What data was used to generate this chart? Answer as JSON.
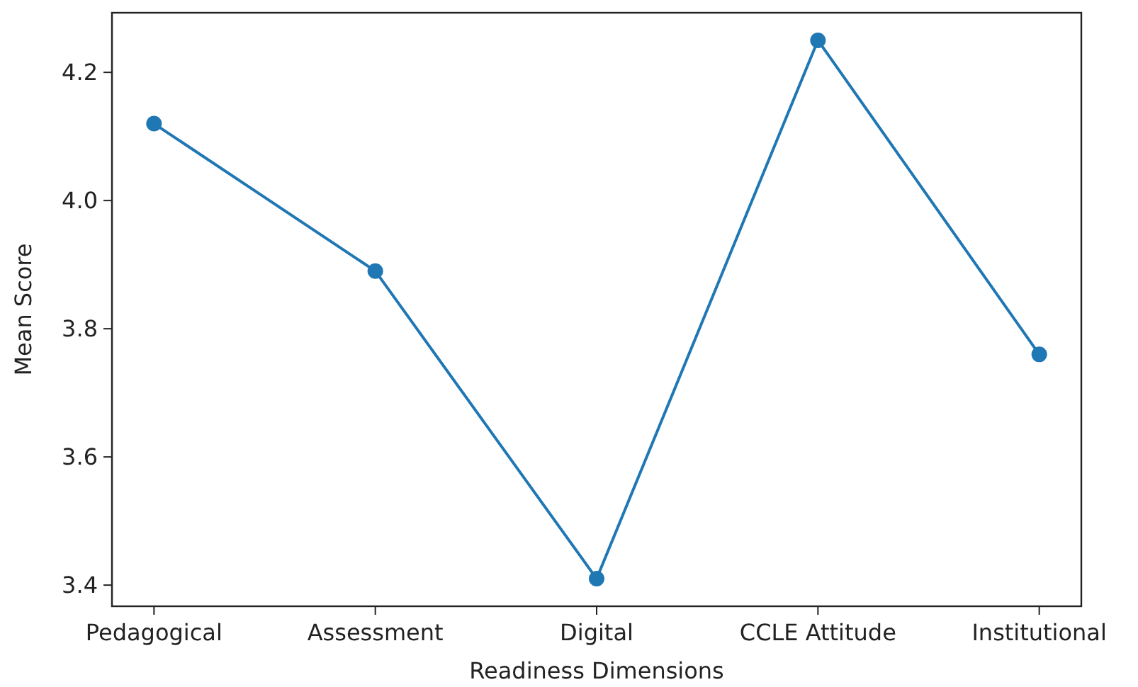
{
  "chart_data": {
    "type": "line",
    "xlabel": "Readiness Dimensions",
    "ylabel": "Mean Score",
    "categories": [
      "Pedagogical",
      "Assessment",
      "Digital",
      "CCLE Attitude",
      "Institutional"
    ],
    "series": [
      {
        "color": "#1f77b4",
        "values": [
          4.12,
          3.89,
          3.41,
          4.25,
          3.76
        ]
      }
    ],
    "ylim": [
      3.367,
      4.293
    ],
    "yticks": [
      {
        "value": 3.4,
        "label": "3.4"
      },
      {
        "value": 3.6,
        "label": "3.6"
      },
      {
        "value": 3.8,
        "label": "3.8"
      },
      {
        "value": 4,
        "label": "4.0"
      },
      {
        "value": 4.2,
        "label": "4.2"
      }
    ],
    "marker": "circle",
    "line_style": "solid",
    "grid": false
  }
}
